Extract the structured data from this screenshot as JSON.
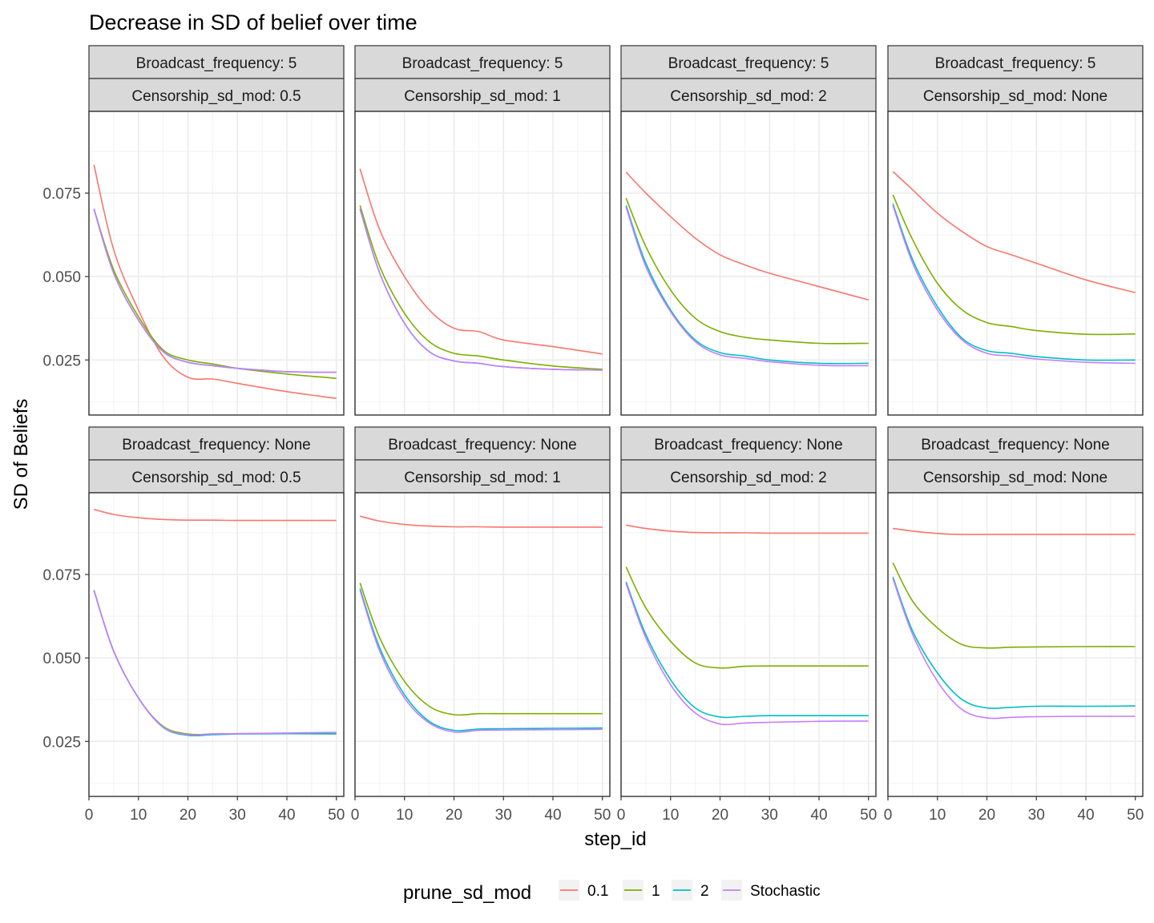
{
  "title": "Decrease in SD of belief over time",
  "xlabel": "step_id",
  "ylabel": "SD of Beliefs",
  "legend": {
    "title": "prune_sd_mod",
    "entries": [
      {
        "label": "0.1",
        "color": "#F8766D"
      },
      {
        "label": "1",
        "color": "#7CAE00"
      },
      {
        "label": "2",
        "color": "#00BFC4"
      },
      {
        "label": "Stochastic",
        "color": "#C77CFF"
      }
    ]
  },
  "chart_data": {
    "type": "line",
    "title": "Decrease in SD of belief over time",
    "xlabel": "step_id",
    "ylabel": "SD of Beliefs",
    "xlim": [
      0,
      51.5
    ],
    "ylim": [
      0.0085,
      0.0995
    ],
    "xticks": [
      0,
      10,
      20,
      30,
      40,
      50
    ],
    "xtick_labels": [
      "0",
      "10",
      "20",
      "30",
      "40",
      "50"
    ],
    "yticks": [
      0.025,
      0.05,
      0.075
    ],
    "ytick_labels": [
      "0.025",
      "0.050",
      "0.075"
    ],
    "grid": true,
    "legend_position": "bottom",
    "x": [
      1,
      5,
      10,
      15,
      20,
      25,
      30,
      40,
      50
    ],
    "series_names": [
      "0.1",
      "1",
      "2",
      "Stochastic"
    ],
    "series_colors": [
      "#F8766D",
      "#7CAE00",
      "#00BFC4",
      "#C77CFF"
    ],
    "panels": [
      {
        "strip1": "Broadcast_frequency: 5",
        "strip2": "Censorship_sd_mod: 0.5",
        "series": [
          {
            "name": "0.1",
            "values": [
              0.0835,
              0.058,
              0.04,
              0.026,
              0.0198,
              0.0193,
              0.018,
              0.0155,
              0.0135
            ]
          },
          {
            "name": "1",
            "values": [
              0.0703,
              0.052,
              0.038,
              0.028,
              0.025,
              0.0238,
              0.0225,
              0.0208,
              0.0195
            ]
          },
          {
            "name": "2",
            "values": [
              0.0703,
              0.051,
              0.037,
              0.0275,
              0.0243,
              0.0233,
              0.0225,
              0.0215,
              0.0213
            ]
          },
          {
            "name": "Stochastic",
            "values": [
              0.0703,
              0.051,
              0.037,
              0.0275,
              0.0243,
              0.0233,
              0.0225,
              0.0215,
              0.0213
            ]
          }
        ]
      },
      {
        "strip1": "Broadcast_frequency: 5",
        "strip2": "Censorship_sd_mod: 1",
        "series": [
          {
            "name": "0.1",
            "values": [
              0.0823,
              0.064,
              0.05,
              0.04,
              0.0345,
              0.0335,
              0.031,
              0.029,
              0.0268
            ]
          },
          {
            "name": "1",
            "values": [
              0.0713,
              0.053,
              0.039,
              0.0305,
              0.027,
              0.0262,
              0.025,
              0.0232,
              0.0222
            ]
          },
          {
            "name": "2",
            "values": [
              0.0703,
              0.051,
              0.036,
              0.0275,
              0.0247,
              0.024,
              0.023,
              0.0222,
              0.022
            ]
          },
          {
            "name": "Stochastic",
            "values": [
              0.0703,
              0.051,
              0.036,
              0.0275,
              0.0247,
              0.024,
              0.023,
              0.0222,
              0.022
            ]
          }
        ]
      },
      {
        "strip1": "Broadcast_frequency: 5",
        "strip2": "Censorship_sd_mod: 2",
        "series": [
          {
            "name": "0.1",
            "values": [
              0.0813,
              0.075,
              0.068,
              0.0615,
              0.0565,
              0.0535,
              0.051,
              0.047,
              0.043
            ]
          },
          {
            "name": "1",
            "values": [
              0.0735,
              0.059,
              0.046,
              0.0375,
              0.0335,
              0.0318,
              0.031,
              0.03,
              0.03
            ]
          },
          {
            "name": "2",
            "values": [
              0.0713,
              0.054,
              0.04,
              0.031,
              0.0272,
              0.0262,
              0.025,
              0.024,
              0.024
            ]
          },
          {
            "name": "Stochastic",
            "values": [
              0.0708,
              0.053,
              0.0395,
              0.0305,
              0.0265,
              0.0255,
              0.0245,
              0.0234,
              0.0233
            ]
          }
        ]
      },
      {
        "strip1": "Broadcast_frequency: 5",
        "strip2": "Censorship_sd_mod: None",
        "series": [
          {
            "name": "0.1",
            "values": [
              0.0815,
              0.076,
              0.069,
              0.0635,
              0.059,
              0.0565,
              0.054,
              0.049,
              0.0452
            ]
          },
          {
            "name": "1",
            "values": [
              0.0745,
              0.061,
              0.048,
              0.04,
              0.0362,
              0.035,
              0.0338,
              0.0327,
              0.0328
            ]
          },
          {
            "name": "2",
            "values": [
              0.0718,
              0.055,
              0.041,
              0.0315,
              0.0278,
              0.027,
              0.026,
              0.025,
              0.025
            ]
          },
          {
            "name": "Stochastic",
            "values": [
              0.0713,
              0.054,
              0.04,
              0.031,
              0.027,
              0.0262,
              0.0253,
              0.0243,
              0.024
            ]
          }
        ]
      },
      {
        "strip1": "Broadcast_frequency: None",
        "strip2": "Censorship_sd_mod: 0.5",
        "series": [
          {
            "name": "0.1",
            "values": [
              0.0945,
              0.093,
              0.092,
              0.0915,
              0.0913,
              0.0913,
              0.0912,
              0.0912,
              0.0912
            ]
          },
          {
            "name": "1",
            "values": [
              0.0703,
              0.052,
              0.038,
              0.0295,
              0.0272,
              0.0272,
              0.0273,
              0.0273,
              0.0272
            ]
          },
          {
            "name": "2",
            "values": [
              0.0703,
              0.052,
              0.038,
              0.0292,
              0.0268,
              0.027,
              0.0272,
              0.0273,
              0.0273
            ]
          },
          {
            "name": "Stochastic",
            "values": [
              0.0703,
              0.052,
              0.038,
              0.0293,
              0.027,
              0.0272,
              0.0273,
              0.0275,
              0.0277
            ]
          }
        ]
      },
      {
        "strip1": "Broadcast_frequency: None",
        "strip2": "Censorship_sd_mod: 1",
        "series": [
          {
            "name": "0.1",
            "values": [
              0.0925,
              0.091,
              0.09,
              0.0895,
              0.0893,
              0.0893,
              0.0892,
              0.0892,
              0.0892
            ]
          },
          {
            "name": "1",
            "values": [
              0.0725,
              0.056,
              0.043,
              0.0355,
              0.033,
              0.0333,
              0.0333,
              0.0333,
              0.0333
            ]
          },
          {
            "name": "2",
            "values": [
              0.0708,
              0.053,
              0.039,
              0.031,
              0.0283,
              0.0287,
              0.0288,
              0.0289,
              0.029
            ]
          },
          {
            "name": "Stochastic",
            "values": [
              0.0703,
              0.052,
              0.038,
              0.0305,
              0.0278,
              0.0283,
              0.0284,
              0.0285,
              0.0286
            ]
          }
        ]
      },
      {
        "strip1": "Broadcast_frequency: None",
        "strip2": "Censorship_sd_mod: 2",
        "series": [
          {
            "name": "0.1",
            "values": [
              0.0898,
              0.0888,
              0.088,
              0.0876,
              0.0875,
              0.0875,
              0.0874,
              0.0874,
              0.0874
            ]
          },
          {
            "name": "1",
            "values": [
              0.0773,
              0.065,
              0.055,
              0.0485,
              0.047,
              0.0475,
              0.0476,
              0.0476,
              0.0476
            ]
          },
          {
            "name": "2",
            "values": [
              0.0728,
              0.057,
              0.0435,
              0.035,
              0.0323,
              0.0325,
              0.0327,
              0.0327,
              0.0327
            ]
          },
          {
            "name": "Stochastic",
            "values": [
              0.0723,
              0.056,
              0.042,
              0.0335,
              0.0302,
              0.0305,
              0.0307,
              0.031,
              0.0311
            ]
          }
        ]
      },
      {
        "strip1": "Broadcast_frequency: None",
        "strip2": "Censorship_sd_mod: None",
        "series": [
          {
            "name": "0.1",
            "values": [
              0.0888,
              0.088,
              0.0873,
              0.087,
              0.087,
              0.087,
              0.087,
              0.087,
              0.087
            ]
          },
          {
            "name": "1",
            "values": [
              0.0785,
              0.067,
              0.059,
              0.054,
              0.053,
              0.0532,
              0.0533,
              0.0534,
              0.0534
            ]
          },
          {
            "name": "2",
            "values": [
              0.0743,
              0.058,
              0.0455,
              0.0375,
              0.035,
              0.0352,
              0.0355,
              0.0355,
              0.0356
            ]
          },
          {
            "name": "Stochastic",
            "values": [
              0.0738,
              0.057,
              0.043,
              0.0345,
              0.032,
              0.0322,
              0.0324,
              0.0325,
              0.0325
            ]
          }
        ]
      }
    ]
  }
}
